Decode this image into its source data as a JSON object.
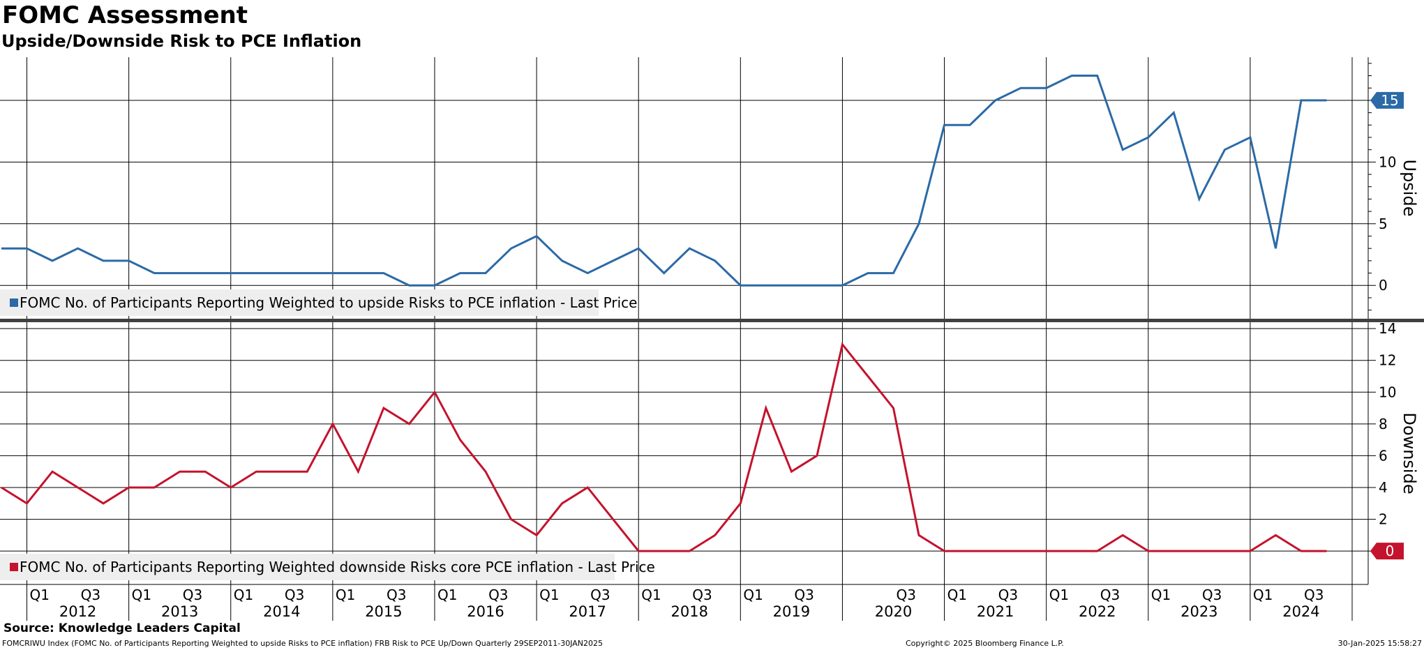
{
  "title": "FOMC Assessment",
  "subtitle": "Upside/Downside Risk to PCE Inflation",
  "source": "Source: Knowledge Leaders Capital",
  "footer": {
    "index_text": "FOMCRIWU Index (FOMC No. of Participants Reporting Weighted to upside Risks to PCE inflation) FRB Risk to PCE Up/Down  Quarterly 29SEP2011-30JAN2025",
    "copyright": "Copyright© 2025 Bloomberg Finance L.P.",
    "datetime": "30-Jan-2025 15:58:27"
  },
  "colors": {
    "upside": "#2b6aa6",
    "downside": "#c4132d",
    "grid": "#000000",
    "legend_bg": "#eeeeee",
    "separator": "#404040"
  },
  "chart_data": [
    {
      "type": "line",
      "panel": "upper",
      "axis_label": "Upside",
      "ylim": [
        -2.7,
        18.5
      ],
      "yticks": [
        0,
        5,
        10,
        15
      ],
      "legend": "FOMC No. of Participants Reporting Weighted to upside Risks to PCE inflation - Last Price",
      "last_value_label": "15",
      "series": [
        {
          "name": "FOMC No. of Participants Reporting Weighted to upside Risks to PCE inflation - Last Price",
          "x": [
            2011.75,
            2012.0,
            2012.25,
            2012.5,
            2012.75,
            2013.0,
            2013.25,
            2013.5,
            2013.75,
            2014.0,
            2014.25,
            2014.5,
            2014.75,
            2015.0,
            2015.25,
            2015.5,
            2015.75,
            2016.0,
            2016.25,
            2016.5,
            2016.75,
            2017.0,
            2017.25,
            2017.5,
            2017.75,
            2018.0,
            2018.25,
            2018.5,
            2018.75,
            2019.0,
            2019.25,
            2019.5,
            2019.75,
            2020.0,
            2020.25,
            2020.5,
            2020.75,
            2021.0,
            2021.25,
            2021.5,
            2021.75,
            2022.0,
            2022.25,
            2022.5,
            2022.75,
            2023.0,
            2023.25,
            2023.5,
            2023.75,
            2024.0,
            2024.25,
            2024.5,
            2024.75
          ],
          "values": [
            3,
            3,
            2,
            3,
            2,
            2,
            1,
            1,
            1,
            1,
            1,
            1,
            1,
            1,
            1,
            1,
            0,
            0,
            1,
            1,
            3,
            4,
            2,
            1,
            2,
            3,
            1,
            3,
            2,
            0,
            0,
            0,
            0,
            0,
            1,
            1,
            5,
            13,
            13,
            15,
            16,
            16,
            17,
            17,
            11,
            12,
            14,
            7,
            11,
            12,
            3,
            15,
            15
          ]
        }
      ]
    },
    {
      "type": "line",
      "panel": "lower",
      "axis_label": "Downside",
      "ylim": [
        -2.1,
        14.4
      ],
      "yticks": [
        0,
        2,
        4,
        6,
        8,
        10,
        12,
        14
      ],
      "legend": "FOMC No. of Participants Reporting Weighted downside Risks core PCE inflation - Last Price",
      "last_value_label": "0",
      "series": [
        {
          "name": "FOMC No. of Participants Reporting Weighted downside Risks core PCE inflation - Last Price",
          "x": [
            2011.75,
            2012.0,
            2012.25,
            2012.5,
            2012.75,
            2013.0,
            2013.25,
            2013.5,
            2013.75,
            2014.0,
            2014.25,
            2014.5,
            2014.75,
            2015.0,
            2015.25,
            2015.5,
            2015.75,
            2016.0,
            2016.25,
            2016.5,
            2016.75,
            2017.0,
            2017.25,
            2017.5,
            2017.75,
            2018.0,
            2018.25,
            2018.5,
            2018.75,
            2019.0,
            2019.25,
            2019.5,
            2019.75,
            2020.0,
            2020.25,
            2020.5,
            2020.75,
            2021.0,
            2021.25,
            2021.5,
            2021.75,
            2022.0,
            2022.25,
            2022.5,
            2022.75,
            2023.0,
            2023.25,
            2023.5,
            2023.75,
            2024.0,
            2024.25,
            2024.5,
            2024.75
          ],
          "values": [
            4,
            3,
            5,
            4,
            3,
            4,
            4,
            5,
            5,
            4,
            5,
            5,
            5,
            8,
            5,
            9,
            8,
            10,
            7,
            5,
            2,
            1,
            3,
            4,
            2,
            0,
            0,
            0,
            1,
            3,
            9,
            5,
            6,
            13,
            11,
            9,
            1,
            0,
            0,
            0,
            0,
            0,
            0,
            0,
            1,
            0,
            0,
            0,
            0,
            0,
            1,
            0,
            0
          ]
        }
      ]
    }
  ],
  "x_axis": {
    "quarter_labels": [
      {
        "x": 2012.125,
        "label": "Q1"
      },
      {
        "x": 2012.625,
        "label": "Q3"
      },
      {
        "x": 2013.125,
        "label": "Q1"
      },
      {
        "x": 2013.625,
        "label": "Q3"
      },
      {
        "x": 2014.125,
        "label": "Q1"
      },
      {
        "x": 2014.625,
        "label": "Q3"
      },
      {
        "x": 2015.125,
        "label": "Q1"
      },
      {
        "x": 2015.625,
        "label": "Q3"
      },
      {
        "x": 2016.125,
        "label": "Q1"
      },
      {
        "x": 2016.625,
        "label": "Q3"
      },
      {
        "x": 2017.125,
        "label": "Q1"
      },
      {
        "x": 2017.625,
        "label": "Q3"
      },
      {
        "x": 2018.125,
        "label": "Q1"
      },
      {
        "x": 2018.625,
        "label": "Q3"
      },
      {
        "x": 2019.125,
        "label": "Q1"
      },
      {
        "x": 2019.625,
        "label": "Q3"
      },
      {
        "x": 2020.625,
        "label": "Q3"
      },
      {
        "x": 2021.125,
        "label": "Q1"
      },
      {
        "x": 2021.625,
        "label": "Q3"
      },
      {
        "x": 2022.125,
        "label": "Q1"
      },
      {
        "x": 2022.625,
        "label": "Q3"
      },
      {
        "x": 2023.125,
        "label": "Q1"
      },
      {
        "x": 2023.625,
        "label": "Q3"
      },
      {
        "x": 2024.125,
        "label": "Q1"
      },
      {
        "x": 2024.625,
        "label": "Q3"
      }
    ],
    "year_labels": [
      {
        "x": 2012.5,
        "label": "2012"
      },
      {
        "x": 2013.5,
        "label": "2013"
      },
      {
        "x": 2014.5,
        "label": "2014"
      },
      {
        "x": 2015.5,
        "label": "2015"
      },
      {
        "x": 2016.5,
        "label": "2016"
      },
      {
        "x": 2017.5,
        "label": "2017"
      },
      {
        "x": 2018.5,
        "label": "2018"
      },
      {
        "x": 2019.5,
        "label": "2019"
      },
      {
        "x": 2020.5,
        "label": "2020"
      },
      {
        "x": 2021.5,
        "label": "2021"
      },
      {
        "x": 2022.5,
        "label": "2022"
      },
      {
        "x": 2023.5,
        "label": "2023"
      },
      {
        "x": 2024.5,
        "label": "2024"
      }
    ],
    "year_gridlines": [
      2012,
      2013,
      2014,
      2015,
      2016,
      2017,
      2018,
      2019,
      2020,
      2021,
      2022,
      2023,
      2024,
      2025
    ]
  }
}
